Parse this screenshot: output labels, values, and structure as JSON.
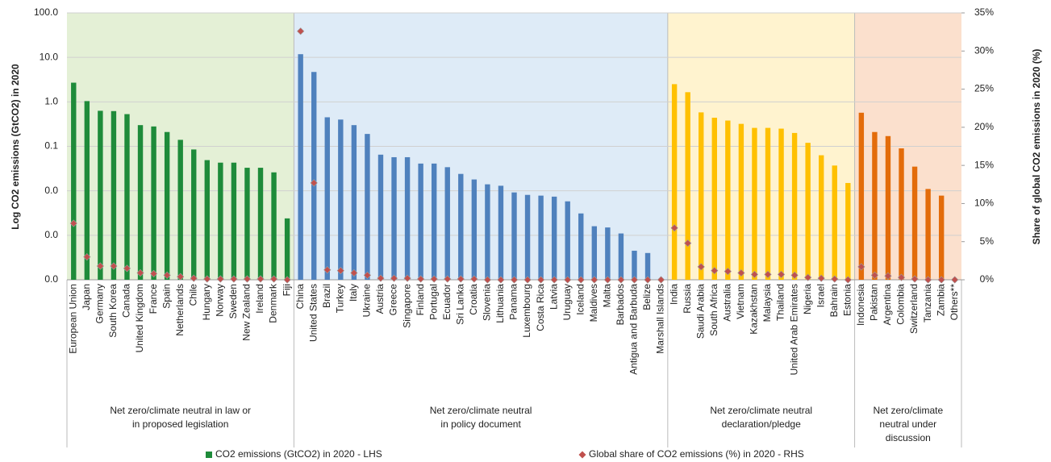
{
  "chart_data": {
    "type": "bar",
    "y_label": "Log CO2 emissions (GtCO2) in 2020",
    "y2_label": "Share of global CO2 emissions  in 2020 (%)",
    "log_y": true,
    "grid": true,
    "ylim": [
      0.0001,
      100
    ],
    "yticks": [
      {
        "value": 0.0001,
        "label": "0.0"
      },
      {
        "value": 0.001,
        "label": "0.0"
      },
      {
        "value": 0.01,
        "label": "0.0"
      },
      0.1,
      {
        "value": 1,
        "label": "1.0"
      },
      {
        "value": 10,
        "label": "10.0"
      },
      {
        "value": 100,
        "label": "100.0"
      }
    ],
    "y2lim": [
      0,
      35
    ],
    "y2ticks": [
      {
        "value": 0,
        "label": "0%"
      },
      {
        "value": 5,
        "label": "5%"
      },
      {
        "value": 10,
        "label": "10%"
      },
      {
        "value": 15,
        "label": "15%"
      },
      {
        "value": 20,
        "label": "20%"
      },
      {
        "value": 25,
        "label": "25%"
      },
      {
        "value": 30,
        "label": "30%"
      },
      {
        "value": 35,
        "label": "35%"
      }
    ],
    "legend": "bottom",
    "groups": [
      {
        "label": [
          "Net zero/climate neutral in law or",
          "in proposed legislation"
        ],
        "color": "#1e8b3a",
        "background": "#e4f0d6",
        "categories": [
          "European Union",
          "Japan",
          "Germany",
          "South Korea",
          "Canada",
          "United Kingdom",
          "France",
          "Spain",
          "Netherlands",
          "Chile",
          "Hungary",
          "Norway",
          "Sweden",
          "New Zealand",
          "Ireland",
          "Denmark",
          "Fiji"
        ]
      },
      {
        "label": [
          "Net zero/climate neutral",
          "in policy document"
        ],
        "color": "#4f81bd",
        "background": "#deebf7",
        "categories": [
          "China",
          "United States",
          "Brazil",
          "Turkey",
          "Italy",
          "Ukraine",
          "Austria",
          "Greece",
          "Singapore",
          "Finland",
          "Portugal",
          "Ecuador",
          "Sri Lanka",
          "Croatia",
          "Slovenia",
          "Lithuania",
          "Panama",
          "Luxembourg",
          "Costa Rica",
          "Latvia",
          "Uruguay",
          "Iceland",
          "Maldives",
          "Malta",
          "Barbados",
          "Antigua and Barbuda",
          "Belize",
          "Marshall Islands"
        ]
      },
      {
        "label": [
          "Net zero/climate neutral",
          "declaration/pledge"
        ],
        "color": "#ffc000",
        "background": "#fff3cf",
        "categories": [
          "India",
          "Russia",
          "Saudi Arabia",
          "South Africa",
          "Australia",
          "Vietnam",
          "Kazakhstan",
          "Malaysia",
          "Thailand",
          "United Arab Emirates",
          "Nigeria",
          "Israel",
          "Bahrain",
          "Estonia"
        ]
      },
      {
        "label": [
          "Net zero/climate",
          "neutral under",
          "discussion"
        ],
        "color": "#e36c0a",
        "background": "#fbe0cd",
        "categories": [
          "Indonesia",
          "Pakistan",
          "Argentina",
          "Colombia",
          "Switzerland",
          "Tanzania",
          "Zambia",
          "Others**"
        ]
      }
    ],
    "series": [
      {
        "name": "CO2 emissions (GtCO2) in 2020 - LHS",
        "color": "#1e8b3a",
        "type": "bar",
        "values": [
          2.7,
          1.04,
          0.63,
          0.62,
          0.53,
          0.3,
          0.28,
          0.21,
          0.14,
          0.085,
          0.049,
          0.043,
          0.043,
          0.033,
          0.033,
          0.026,
          0.0024,
          11.8,
          4.7,
          0.45,
          0.4,
          0.3,
          0.19,
          0.065,
          0.057,
          0.057,
          0.041,
          0.041,
          0.034,
          0.024,
          0.018,
          0.014,
          0.013,
          0.0092,
          0.0081,
          0.0078,
          0.0074,
          0.0058,
          0.0031,
          0.0016,
          0.0015,
          0.0011,
          0.00045,
          0.0004,
          null,
          2.5,
          1.65,
          0.58,
          0.44,
          0.38,
          0.32,
          0.26,
          0.26,
          0.25,
          0.2,
          0.12,
          0.063,
          0.037,
          0.015,
          0.57,
          0.21,
          0.17,
          0.09,
          0.035,
          0.011,
          0.0078,
          null
        ]
      },
      {
        "name": "Global share of CO2 emissions (%) in 2020 - RHS",
        "color": "#c0504d",
        "type": "scatter",
        "axis": "y2",
        "values": [
          7.4,
          3.0,
          1.8,
          1.8,
          1.5,
          0.9,
          0.8,
          0.6,
          0.4,
          0.2,
          0.1,
          0.1,
          0.1,
          0.1,
          0.1,
          0.1,
          0.0,
          32.6,
          12.7,
          1.3,
          1.2,
          0.9,
          0.6,
          0.2,
          0.2,
          0.2,
          0.1,
          0.1,
          0.1,
          0.1,
          0.1,
          0.0,
          0.0,
          0.0,
          0.0,
          0.0,
          0.0,
          0.0,
          0.0,
          0.0,
          0.0,
          0.0,
          0.0,
          0.0,
          0.0,
          6.8,
          4.8,
          1.7,
          1.2,
          1.1,
          0.9,
          0.7,
          0.7,
          0.7,
          0.6,
          0.3,
          0.2,
          0.1,
          0.0,
          1.7,
          0.6,
          0.5,
          0.3,
          0.1,
          0.0,
          0.0,
          0.0
        ]
      }
    ]
  }
}
